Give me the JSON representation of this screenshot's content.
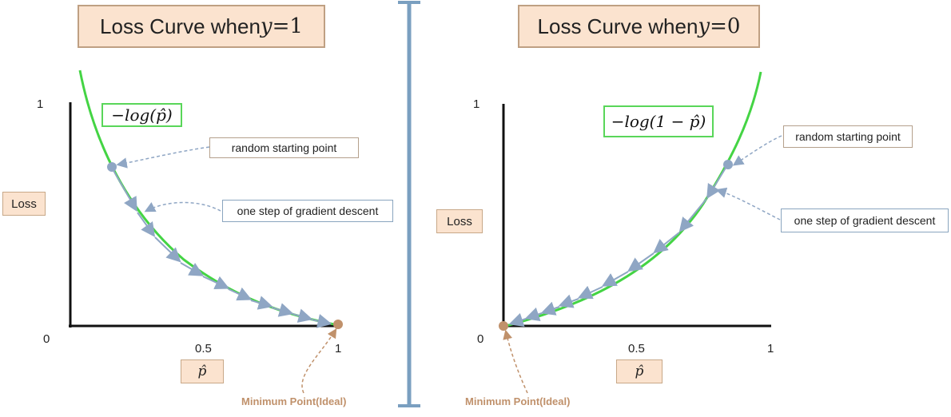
{
  "left_panel": {
    "title_text": "Loss Curve when ",
    "title_var": "y",
    "title_eq": " = ",
    "title_val": "1",
    "formula": "−log(p̂)",
    "ylabel": "Loss",
    "xlabel": "p̂",
    "tick_y1": "1",
    "tick_y0": "0",
    "tick_x05": "0.5",
    "tick_x1": "1",
    "annot_start": "random starting point",
    "annot_step": "one step of gradient descent",
    "min_point": "Minimum Point(Ideal)"
  },
  "right_panel": {
    "title_text": "Loss Curve when ",
    "title_var": "y",
    "title_eq": " = ",
    "title_val": "0",
    "formula": "−log(1 − p̂)",
    "ylabel": "Loss",
    "xlabel": "p̂",
    "tick_y1": "1",
    "tick_y0": "0",
    "tick_x05": "0.5",
    "tick_x1": "1",
    "annot_start": "random starting point",
    "annot_step": "one step of gradient descent",
    "min_point": "Minimum Point(Ideal)"
  },
  "colors": {
    "curve": "#44d444",
    "axis": "#111111",
    "step_arrow": "#8fa6c4",
    "start_point": "#8fa6c4",
    "min_point": "#c0916b",
    "divider": "#7a9fc0",
    "title_bg": "#fbe3cf"
  }
}
